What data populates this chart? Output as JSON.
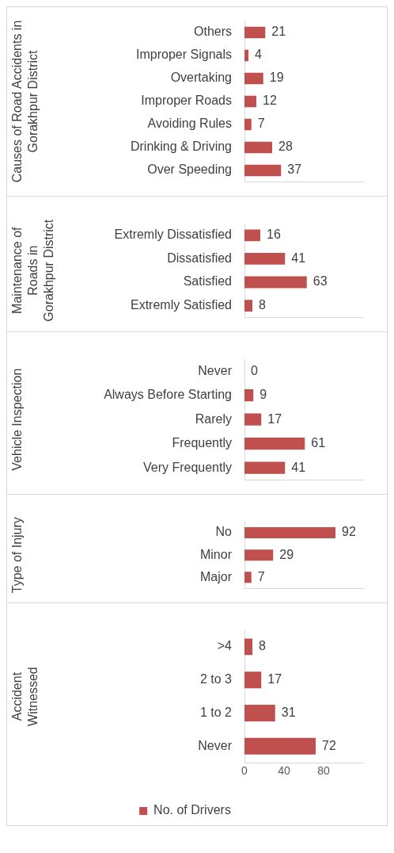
{
  "chart_data": [
    {
      "type": "bar",
      "orientation": "horizontal",
      "ylabel": "Causes of Road Accidents in Gorakhpur District",
      "categories": [
        "Others",
        "Improper Signals",
        "Overtaking",
        "Improper Roads",
        "Avoiding Rules",
        "Drinking & Driving",
        "Over Speeding"
      ],
      "series": [
        {
          "color": "#c0504d",
          "values": [
            21,
            4,
            19,
            12,
            7,
            28,
            37
          ]
        }
      ],
      "xlim": [
        0,
        120
      ],
      "xticks": [
        0,
        40,
        80
      ],
      "data_labels": true,
      "tick_labels": "y"
    },
    {
      "type": "bar",
      "orientation": "horizontal",
      "ylabel": "Maintenance of Roads in Gorakhpur District",
      "categories": [
        "Extremly Dissatisfied",
        "Dissatisfied",
        "Satisfied",
        "Extremly Satisfied"
      ],
      "series": [
        {
          "color": "#c0504d",
          "values": [
            16,
            41,
            63,
            8
          ]
        }
      ],
      "xlim": [
        0,
        120
      ],
      "xticks": [
        0,
        40,
        80
      ],
      "data_labels": true,
      "tick_labels": "y"
    },
    {
      "type": "bar",
      "orientation": "horizontal",
      "ylabel": "Vehicle Inspection",
      "categories": [
        "Never",
        "Always Before Starting",
        "Rarely",
        "Frequently",
        "Very Frequently"
      ],
      "series": [
        {
          "color": "#c0504d",
          "values": [
            0,
            9,
            17,
            61,
            41
          ]
        }
      ],
      "xlim": [
        0,
        120
      ],
      "xticks": [
        0,
        40,
        80
      ],
      "data_labels": true,
      "tick_labels": "y"
    },
    {
      "type": "bar",
      "orientation": "horizontal",
      "ylabel": "Type of Injury",
      "categories": [
        "No",
        "Minor",
        "Major"
      ],
      "series": [
        {
          "color": "#c0504d",
          "values": [
            92,
            29,
            7
          ]
        }
      ],
      "xlim": [
        0,
        120
      ],
      "xticks": [
        0,
        40,
        80
      ],
      "data_labels": true,
      "tick_labels": "y"
    },
    {
      "type": "bar",
      "orientation": "horizontal",
      "ylabel": "Accident Witnessed",
      "categories": [
        ">4",
        "2 to 3",
        "1 to 2",
        "Never"
      ],
      "series": [
        {
          "name": "No. of Drivers",
          "color": "#c0504d",
          "values": [
            8,
            17,
            31,
            72
          ]
        }
      ],
      "xlim": [
        0,
        120
      ],
      "xticks": [
        0,
        40,
        80
      ],
      "data_labels": true,
      "legend": "bottom"
    }
  ]
}
